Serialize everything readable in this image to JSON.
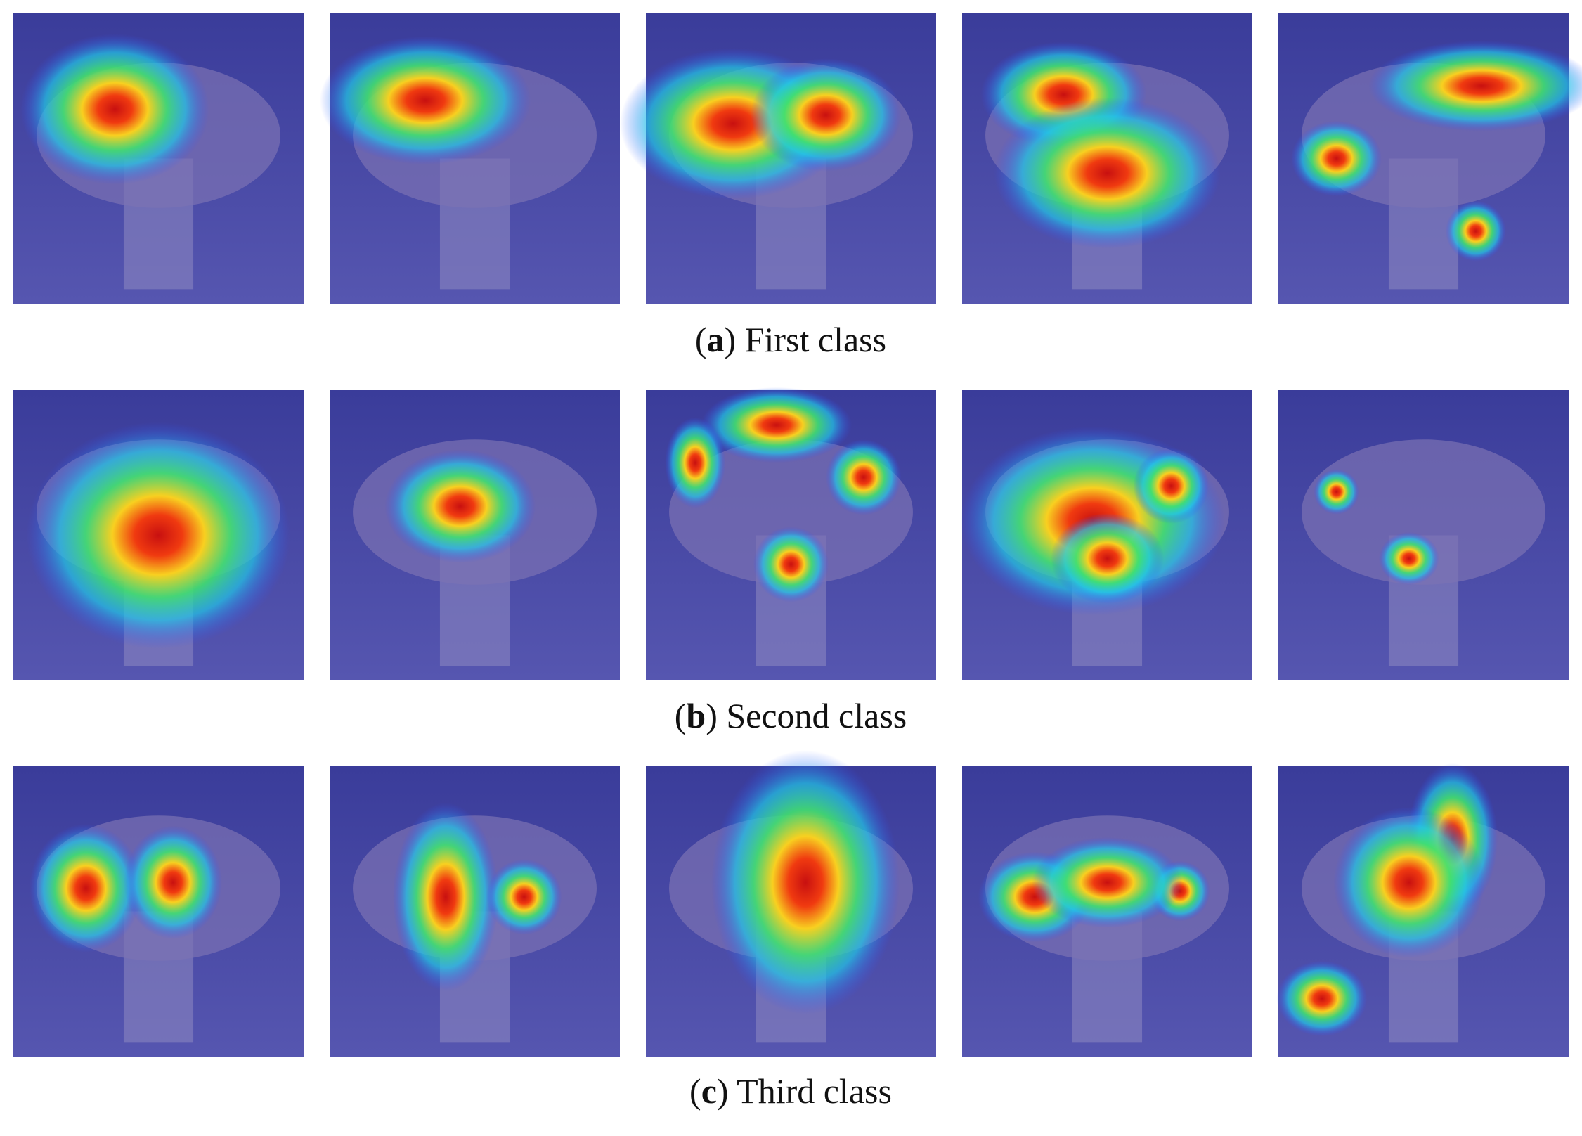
{
  "figure": {
    "rows": [
      {
        "caption": {
          "prefix": "(",
          "letter": "a",
          "suffix": ") First class"
        }
      },
      {
        "caption": {
          "prefix": "(",
          "letter": "b",
          "suffix": ") Second class"
        }
      },
      {
        "caption": {
          "prefix": "(",
          "letter": "c",
          "suffix": ") Third class"
        }
      }
    ]
  }
}
